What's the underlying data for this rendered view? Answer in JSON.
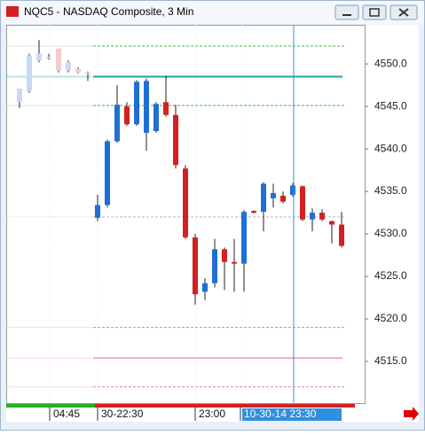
{
  "window": {
    "title": "NQC5 - NASDAQ Composite, 3 Min"
  },
  "chart_data": {
    "type": "candlestick",
    "ylim": [
      4510.1,
      4554.6
    ],
    "yticks": [
      {
        "value": 4515,
        "label": "4515.0"
      },
      {
        "value": 4520,
        "label": "4520.0"
      },
      {
        "value": 4525,
        "label": "4525.0"
      },
      {
        "value": 4530,
        "label": "4530.0"
      },
      {
        "value": 4535,
        "label": "4535.0"
      },
      {
        "value": 4540,
        "label": "4540.0"
      },
      {
        "value": 4545,
        "label": "4545.0"
      },
      {
        "value": 4550,
        "label": "4550.0"
      }
    ],
    "x_labels": [
      "04:45",
      "30-22:30",
      "23:00",
      "10-30-14 23:30"
    ],
    "up_color": "#1f6fd6",
    "down_color": "#d42020",
    "history": {
      "up_color": "#c9d9f2",
      "down_color": "#f2cccc",
      "open": [
        4545.5,
        4546.8,
        4550.4,
        4550.7,
        4551.8,
        4549.2,
        4549.4,
        4549.0
      ],
      "high": [
        4547.1,
        4551.2,
        4552.8,
        4551.2,
        4551.8,
        4550.4,
        4549.6,
        4549.1
      ],
      "low": [
        4544.8,
        4546.6,
        4550.2,
        4550.5,
        4549.0,
        4549.0,
        4548.9,
        4548.0
      ],
      "close": [
        4547.1,
        4551.0,
        4551.2,
        4550.8,
        4549.2,
        4550.2,
        4549.0,
        4548.9
      ]
    },
    "candles": {
      "open": [
        4531.9,
        4533.4,
        4540.9,
        4545.0,
        4542.9,
        4541.9,
        4542.1,
        4545.5,
        4544.0,
        4537.7,
        4529.6,
        4523.2,
        4524.2,
        4528.2,
        4526.7,
        4526.5,
        4532.7,
        4532.6,
        4534.2,
        4534.5,
        4534.6,
        4535.6,
        4531.7,
        4532.5,
        4531.5,
        4531.1
      ],
      "high": [
        4534.6,
        4541.1,
        4547.5,
        4545.5,
        4548.1,
        4548.3,
        4545.5,
        4548.6,
        4545.2,
        4538.1,
        4530.0,
        4524.8,
        4529.4,
        4528.4,
        4529.4,
        4532.8,
        4532.8,
        4536.1,
        4535.9,
        4535.0,
        4536.0,
        4535.7,
        4533.0,
        4532.9,
        4531.6,
        4532.6
      ],
      "low": [
        4531.5,
        4533.1,
        4540.7,
        4542.7,
        4542.7,
        4539.8,
        4541.9,
        4543.8,
        4537.7,
        4529.4,
        4521.7,
        4522.2,
        4523.7,
        4523.4,
        4523.2,
        4523.2,
        4532.4,
        4530.3,
        4533.1,
        4533.6,
        4534.4,
        4531.5,
        4530.3,
        4531.5,
        4528.9,
        4528.4
      ],
      "close": [
        4533.4,
        4540.9,
        4545.2,
        4542.9,
        4547.9,
        4548.0,
        4545.3,
        4544.0,
        4538.1,
        4529.6,
        4522.9,
        4524.2,
        4528.2,
        4526.7,
        4526.5,
        4532.6,
        4532.5,
        4535.9,
        4534.8,
        4533.8,
        4535.7,
        4531.7,
        4532.5,
        4531.7,
        4531.1,
        4528.6
      ]
    },
    "levels": [
      {
        "value": 4552.1,
        "color": "#3cb44a",
        "dash": true
      },
      {
        "value": 4548.5,
        "color": "#1aa5a5",
        "dash": false
      },
      {
        "value": 4545.1,
        "color": "#3cb44a",
        "dash": true
      },
      {
        "value": 4532.0,
        "color": "#b8b8b8",
        "dash": true
      },
      {
        "value": 4519.0,
        "color": "#e07ab8",
        "dash": true
      },
      {
        "value": 4515.4,
        "color": "#f7a8cf",
        "dash": false
      },
      {
        "value": 4512.0,
        "color": "#e07ab8",
        "dash": true
      }
    ]
  }
}
